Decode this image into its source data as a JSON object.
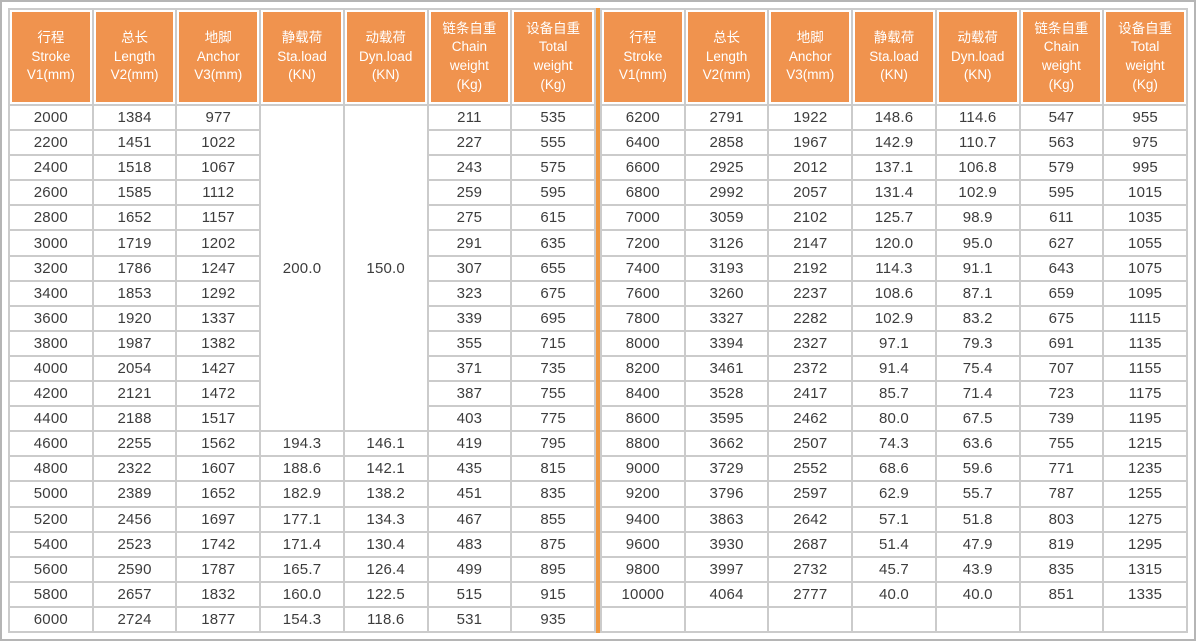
{
  "colors": {
    "header_bg": "#F0934E",
    "divider": "#EF9840",
    "grid_line": "#cbcbcb",
    "outer_border": "#b5b5b5",
    "header_text": "#ffffff",
    "data_text": "#3c3c3c"
  },
  "table": {
    "header": [
      "行程\nStroke\nV1(mm)",
      "总长\nLength\nV2(mm)",
      "地脚\nAnchor\nV3(mm)",
      "静载荷\nSta.load\n(KN)",
      "动载荷\nDyn.load\n(KN)",
      "链条自重\nChain\nweight\n(Kg)",
      "设备自重\nTotal\nweight\n(Kg)"
    ],
    "left": {
      "merged": {
        "cols": [
          3,
          4
        ],
        "values": [
          "200.0",
          "150.0"
        ],
        "row_span": 13
      },
      "rows": [
        [
          "2000",
          "1384",
          "977",
          "",
          "",
          "211",
          "535"
        ],
        [
          "2200",
          "1451",
          "1022",
          "",
          "",
          "227",
          "555"
        ],
        [
          "2400",
          "1518",
          "1067",
          "",
          "",
          "243",
          "575"
        ],
        [
          "2600",
          "1585",
          "1112",
          "",
          "",
          "259",
          "595"
        ],
        [
          "2800",
          "1652",
          "1157",
          "",
          "",
          "275",
          "615"
        ],
        [
          "3000",
          "1719",
          "1202",
          "",
          "",
          "291",
          "635"
        ],
        [
          "3200",
          "1786",
          "1247",
          "",
          "",
          "307",
          "655"
        ],
        [
          "3400",
          "1853",
          "1292",
          "",
          "",
          "323",
          "675"
        ],
        [
          "3600",
          "1920",
          "1337",
          "",
          "",
          "339",
          "695"
        ],
        [
          "3800",
          "1987",
          "1382",
          "",
          "",
          "355",
          "715"
        ],
        [
          "4000",
          "2054",
          "1427",
          "",
          "",
          "371",
          "735"
        ],
        [
          "4200",
          "2121",
          "1472",
          "",
          "",
          "387",
          "755"
        ],
        [
          "4400",
          "2188",
          "1517",
          "",
          "",
          "403",
          "775"
        ],
        [
          "4600",
          "2255",
          "1562",
          "194.3",
          "146.1",
          "419",
          "795"
        ],
        [
          "4800",
          "2322",
          "1607",
          "188.6",
          "142.1",
          "435",
          "815"
        ],
        [
          "5000",
          "2389",
          "1652",
          "182.9",
          "138.2",
          "451",
          "835"
        ],
        [
          "5200",
          "2456",
          "1697",
          "177.1",
          "134.3",
          "467",
          "855"
        ],
        [
          "5400",
          "2523",
          "1742",
          "171.4",
          "130.4",
          "483",
          "875"
        ],
        [
          "5600",
          "2590",
          "1787",
          "165.7",
          "126.4",
          "499",
          "895"
        ],
        [
          "5800",
          "2657",
          "1832",
          "160.0",
          "122.5",
          "515",
          "915"
        ],
        [
          "6000",
          "2724",
          "1877",
          "154.3",
          "118.6",
          "531",
          "935"
        ]
      ]
    },
    "right": {
      "rows": [
        [
          "6200",
          "2791",
          "1922",
          "148.6",
          "114.6",
          "547",
          "955"
        ],
        [
          "6400",
          "2858",
          "1967",
          "142.9",
          "110.7",
          "563",
          "975"
        ],
        [
          "6600",
          "2925",
          "2012",
          "137.1",
          "106.8",
          "579",
          "995"
        ],
        [
          "6800",
          "2992",
          "2057",
          "131.4",
          "102.9",
          "595",
          "1015"
        ],
        [
          "7000",
          "3059",
          "2102",
          "125.7",
          "98.9",
          "611",
          "1035"
        ],
        [
          "7200",
          "3126",
          "2147",
          "120.0",
          "95.0",
          "627",
          "1055"
        ],
        [
          "7400",
          "3193",
          "2192",
          "114.3",
          "91.1",
          "643",
          "1075"
        ],
        [
          "7600",
          "3260",
          "2237",
          "108.6",
          "87.1",
          "659",
          "1095"
        ],
        [
          "7800",
          "3327",
          "2282",
          "102.9",
          "83.2",
          "675",
          "1115"
        ],
        [
          "8000",
          "3394",
          "2327",
          "97.1",
          "79.3",
          "691",
          "1135"
        ],
        [
          "8200",
          "3461",
          "2372",
          "91.4",
          "75.4",
          "707",
          "1155"
        ],
        [
          "8400",
          "3528",
          "2417",
          "85.7",
          "71.4",
          "723",
          "1175"
        ],
        [
          "8600",
          "3595",
          "2462",
          "80.0",
          "67.5",
          "739",
          "1195"
        ],
        [
          "8800",
          "3662",
          "2507",
          "74.3",
          "63.6",
          "755",
          "1215"
        ],
        [
          "9000",
          "3729",
          "2552",
          "68.6",
          "59.6",
          "771",
          "1235"
        ],
        [
          "9200",
          "3796",
          "2597",
          "62.9",
          "55.7",
          "787",
          "1255"
        ],
        [
          "9400",
          "3863",
          "2642",
          "57.1",
          "51.8",
          "803",
          "1275"
        ],
        [
          "9600",
          "3930",
          "2687",
          "51.4",
          "47.9",
          "819",
          "1295"
        ],
        [
          "9800",
          "3997",
          "2732",
          "45.7",
          "43.9",
          "835",
          "1315"
        ],
        [
          "10000",
          "4064",
          "2777",
          "40.0",
          "40.0",
          "851",
          "1335"
        ],
        [
          "",
          "",
          "",
          "",
          "",
          "",
          ""
        ]
      ]
    }
  }
}
